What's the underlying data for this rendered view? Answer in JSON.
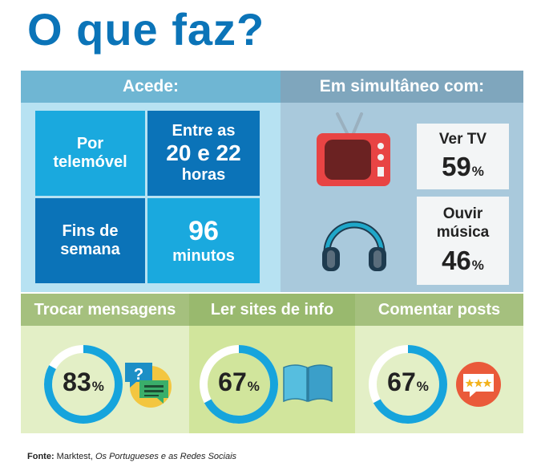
{
  "title": "O que faz?",
  "acede": {
    "header": "Acede:",
    "tiles": [
      {
        "lines": [
          "Por",
          "telemóvel"
        ]
      },
      {
        "lines": [
          "Entre as",
          "20 e 22",
          "horas"
        ]
      },
      {
        "lines": [
          "Fins de",
          "semana"
        ]
      },
      {
        "lines": [
          "96",
          "minutos"
        ]
      }
    ]
  },
  "simultaneo": {
    "header": "Em simultâneo com:",
    "items": [
      {
        "icon": "tv-icon",
        "label_lines": [
          "Ver TV"
        ],
        "value": "59",
        "unit": "%"
      },
      {
        "icon": "headphones-icon",
        "label_lines": [
          "Ouvir",
          "música"
        ],
        "value": "46",
        "unit": "%"
      }
    ]
  },
  "activities": [
    {
      "label": "Trocar mensagens",
      "value": "83",
      "unit": "%",
      "fraction": 0.83,
      "icon": "chat-bubbles-icon"
    },
    {
      "label": "Ler sites de info",
      "value": "67",
      "unit": "%",
      "fraction": 0.67,
      "icon": "open-book-icon"
    },
    {
      "label": "Comentar posts",
      "value": "67",
      "unit": "%",
      "fraction": 0.67,
      "icon": "rating-comment-icon"
    }
  ],
  "colors": {
    "title": "#0b74b8",
    "tile_light": "#1aa9de",
    "tile_dark": "#0b73b8",
    "ring": "#16a4dc",
    "ring_track": "#ffffff",
    "activity_header": "#a5c07e",
    "activity_header_mid": "#99b96e",
    "activity_panel": "#e3efc6",
    "activity_panel_mid": "#d1e59c"
  },
  "footer": {
    "label": "Fonte:",
    "source": "Marktest,",
    "publication": "Os Portugueses e as Redes Sociais"
  }
}
